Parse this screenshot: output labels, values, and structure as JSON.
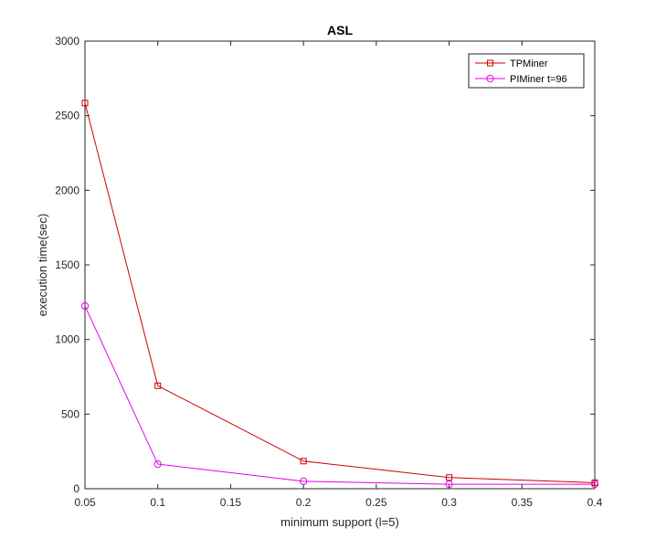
{
  "chart_data": {
    "type": "line",
    "title": "ASL",
    "xlabel": "minimum support (l=5)",
    "ylabel": "execution time(sec)",
    "xlim": [
      0.05,
      0.4
    ],
    "ylim": [
      0,
      3000
    ],
    "xticks": [
      0.05,
      0.1,
      0.15,
      0.2,
      0.25,
      0.3,
      0.35,
      0.4
    ],
    "xtick_labels": [
      "0.05",
      "0.1",
      "0.15",
      "0.2",
      "0.25",
      "0.3",
      "0.35",
      "0.4"
    ],
    "yticks": [
      0,
      500,
      1000,
      1500,
      2000,
      2500,
      3000
    ],
    "ytick_labels": [
      "0",
      "500",
      "1000",
      "1500",
      "2000",
      "2500",
      "3000"
    ],
    "grid": false,
    "legend_position": "top-right",
    "series": [
      {
        "name": "TPMiner",
        "color": "#cc0000",
        "marker": "square",
        "x": [
          0.05,
          0.1,
          0.2,
          0.3,
          0.4
        ],
        "y": [
          2585,
          690,
          185,
          75,
          40
        ]
      },
      {
        "name": "PIMiner t=96",
        "color": "#e600e6",
        "marker": "circle",
        "x": [
          0.05,
          0.1,
          0.2,
          0.3,
          0.4
        ],
        "y": [
          1225,
          165,
          50,
          30,
          30
        ]
      }
    ]
  }
}
